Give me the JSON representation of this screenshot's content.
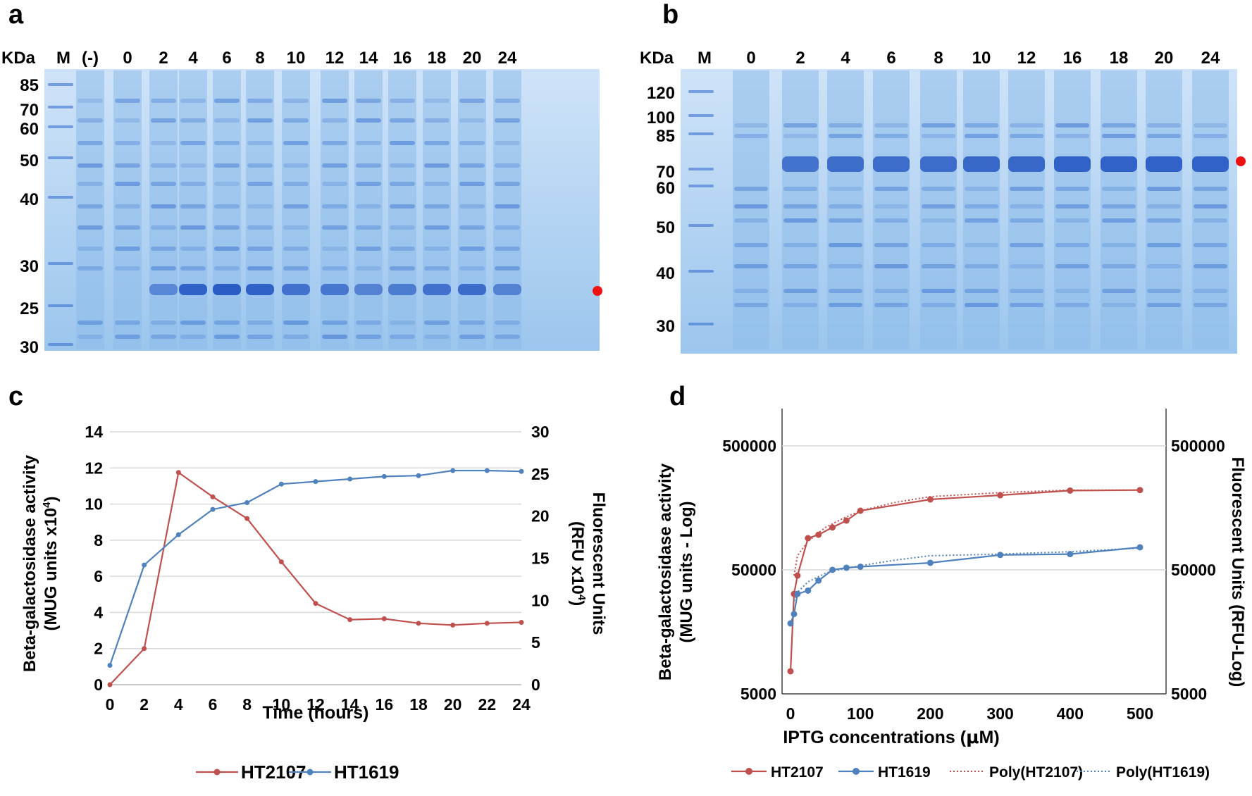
{
  "panels": {
    "a": {
      "letter": "a",
      "kda_label": "KDa",
      "marker_label": "M",
      "lane_labels": [
        "(-)",
        "0",
        "2",
        "4",
        "6",
        "8",
        "10",
        "12",
        "14",
        "16",
        "18",
        "20",
        "24"
      ],
      "mw_labels": [
        "85",
        "70",
        "60",
        "50",
        "40",
        "30",
        "25",
        "30"
      ]
    },
    "b": {
      "letter": "b",
      "kda_label": "KDa",
      "marker_label": "M",
      "lane_labels": [
        "0",
        "2",
        "4",
        "6",
        "8",
        "10",
        "12",
        "16",
        "18",
        "20",
        "24"
      ],
      "mw_labels": [
        "120",
        "100",
        "85",
        "70",
        "60",
        "50",
        "40",
        "30"
      ]
    },
    "c": {
      "letter": "c"
    },
    "d": {
      "letter": "d"
    }
  },
  "colors": {
    "gel_base": "#9cc6ee",
    "gel_band": "#2f63c9",
    "marker_dot": "#ee1111",
    "series_red": "#c0504d",
    "series_blue": "#4f81bd"
  },
  "chart_data": [
    {
      "id": "c",
      "type": "line",
      "title": "",
      "xlabel": "Time (hours)",
      "ylabel_left_line1": "Beta-galactosidase activity",
      "ylabel_left_line2": "(MUG units x10",
      "ylabel_left_sup": "4",
      "ylabel_left_close": ")",
      "ylabel_right_line1": "Fluorescent Units",
      "ylabel_right_line2": "(RFU x10",
      "ylabel_right_sup": "4",
      "ylabel_right_close": ")",
      "xlim": [
        0,
        24
      ],
      "ylim_left": [
        0,
        14
      ],
      "ylim_right": [
        0,
        30
      ],
      "x_ticks": [
        0,
        2,
        4,
        6,
        8,
        10,
        12,
        14,
        16,
        18,
        20,
        22,
        24
      ],
      "y_left_ticks": [
        0,
        2,
        4,
        6,
        8,
        10,
        12,
        14
      ],
      "y_right_ticks": [
        0,
        5,
        10,
        15,
        20,
        25,
        30
      ],
      "grid": true,
      "legend_position": "bottom-center",
      "series": [
        {
          "name": "HT2107",
          "axis": "left",
          "color": "#c0504d",
          "x": [
            0,
            2,
            4,
            6,
            8,
            10,
            12,
            14,
            16,
            18,
            20,
            22,
            24
          ],
          "values": [
            0,
            2.0,
            11.75,
            10.4,
            9.2,
            6.8,
            4.5,
            3.6,
            3.65,
            3.4,
            3.3,
            3.4,
            3.45
          ]
        },
        {
          "name": "HT1619",
          "axis": "right",
          "color": "#4f81bd",
          "x": [
            0,
            2,
            4,
            6,
            8,
            10,
            12,
            14,
            16,
            18,
            20,
            22,
            24
          ],
          "values": [
            2.3,
            14.2,
            17.8,
            20.8,
            21.6,
            23.8,
            24.1,
            24.4,
            24.7,
            24.8,
            25.4,
            25.4,
            25.3
          ]
        }
      ]
    },
    {
      "id": "d",
      "type": "line",
      "scale_y": "log",
      "title": "",
      "xlabel_prefix": "IPTG concentrations (",
      "xlabel_mu": "μ",
      "xlabel_unit": "M",
      "xlabel_suffix": ")",
      "ylabel_left": "Beta-galactosidase activity",
      "ylabel_left_line2": "(MUG units - Log)",
      "ylabel_right": "Fluorescent Units (RFU-Log)",
      "xlim": [
        0,
        500
      ],
      "ylim": [
        5000,
        1000000
      ],
      "x_ticks": [
        0,
        100,
        200,
        300,
        400,
        500
      ],
      "y_ticks": [
        5000,
        50000,
        500000
      ],
      "y_tick_labels": [
        "5000",
        "50000",
        "500000"
      ],
      "grid": true,
      "legend_position": "bottom-center",
      "series": [
        {
          "name": "HT2107",
          "color": "#c0504d",
          "style": "solid-marker",
          "x": [
            0,
            5,
            10,
            25,
            40,
            60,
            80,
            100,
            200,
            300,
            400,
            500
          ],
          "values": [
            7600,
            32000,
            45000,
            90000,
            96000,
            110000,
            125000,
            150000,
            185000,
            200000,
            218000,
            220000
          ]
        },
        {
          "name": "HT1619",
          "color": "#4f81bd",
          "style": "solid-marker",
          "x": [
            0,
            5,
            10,
            25,
            40,
            60,
            80,
            100,
            200,
            300,
            400,
            500
          ],
          "values": [
            18500,
            22000,
            32000,
            34000,
            41000,
            50000,
            52000,
            53000,
            57000,
            66000,
            67000,
            76000
          ]
        },
        {
          "name": "Poly(HT2107)",
          "color": "#c0504d",
          "style": "dotted",
          "x": [
            5,
            10,
            25,
            50,
            75,
            100,
            150,
            200,
            300,
            400,
            500
          ],
          "values": [
            45000,
            65000,
            85000,
            110000,
            130000,
            150000,
            175000,
            195000,
            210000,
            220000,
            220000
          ]
        },
        {
          "name": "Poly(HT1619)",
          "color": "#4f81bd",
          "style": "dotted",
          "x": [
            5,
            10,
            25,
            50,
            75,
            100,
            150,
            200,
            300,
            400,
            500
          ],
          "values": [
            28000,
            33000,
            40000,
            47000,
            51000,
            54000,
            60000,
            65000,
            67000,
            70000,
            75000
          ]
        }
      ]
    }
  ]
}
